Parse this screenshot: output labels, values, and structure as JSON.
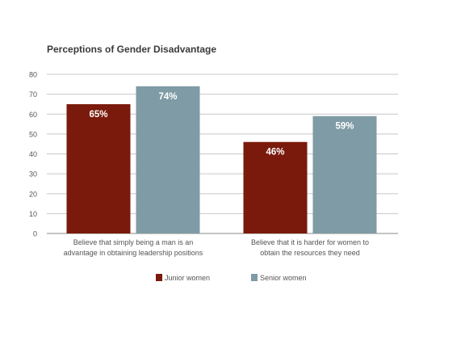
{
  "chart_data": {
    "type": "bar",
    "title": "Perceptions of Gender Disadvantage",
    "categories": [
      "Believe that simply being a man is an advantage in obtaining leadership positions",
      "Believe that it is harder for women to obtain the resources they need"
    ],
    "category_label_lines": [
      [
        "Believe that simply being a man is an",
        "advantage in obtaining leadership positions"
      ],
      [
        "Believe that it is harder for women to",
        "obtain the resources they need"
      ]
    ],
    "series": [
      {
        "name": "Junior women",
        "values": [
          65,
          46
        ],
        "labels": [
          "65%",
          "46%"
        ],
        "color": "#7a1a0c"
      },
      {
        "name": "Senior women",
        "values": [
          74,
          59
        ],
        "labels": [
          "74%",
          "59%"
        ],
        "color": "#7f9ba5"
      }
    ],
    "ylim": [
      0,
      80
    ],
    "yticks": [
      0,
      10,
      20,
      30,
      40,
      50,
      60,
      70,
      80
    ],
    "grid": true,
    "legend_position": "bottom",
    "xlabel": "",
    "ylabel": ""
  }
}
